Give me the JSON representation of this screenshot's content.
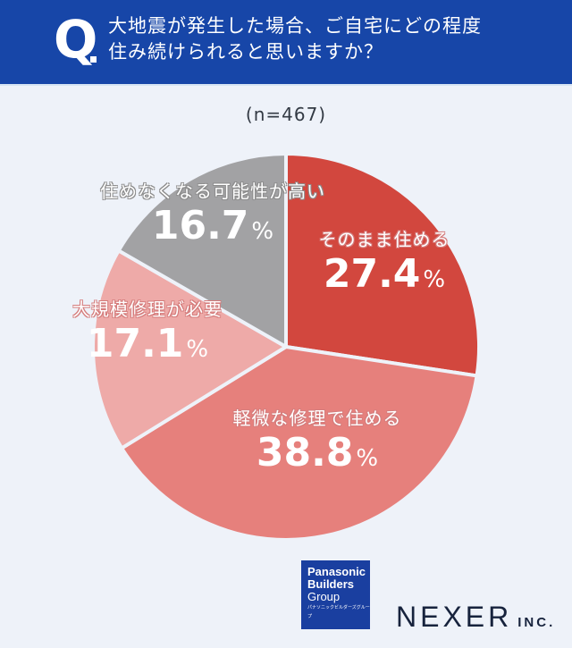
{
  "header": {
    "q_mark": "Q",
    "question_line1": "大地震が発生した場合、ご自宅にどの程度",
    "question_line2": "住み続けられると思いますか？"
  },
  "sample_size": "(n=467)",
  "colors": {
    "header_bg": "#1746a8",
    "page_bg": "#eef2f9",
    "slice_1": "#d2473e",
    "slice_2": "#e6807c",
    "slice_3": "#eeaaa8",
    "slice_4": "#a2a2a4",
    "separator": "#eef2f9"
  },
  "chart_data": {
    "type": "pie",
    "title": "大地震が発生した場合、ご自宅にどの程度住み続けられると思いますか？",
    "subtitle": "(n=467)",
    "categories": [
      "そのまま住める",
      "軽微な修理で住める",
      "大規模修理が必要",
      "住めなくなる可能性が高い"
    ],
    "values": [
      27.4,
      38.8,
      17.1,
      16.7
    ],
    "unit": "%",
    "start_angle": "12 o'clock",
    "direction": "clockwise",
    "legend": "none (labels inside slices)"
  },
  "labels": [
    {
      "category": "そのまま住める",
      "value": "27.4",
      "sign": "%"
    },
    {
      "category": "軽微な修理で住める",
      "value": "38.8",
      "sign": "%"
    },
    {
      "category": "大規模修理が必要",
      "value": "17.1",
      "sign": "%"
    },
    {
      "category": "住めなくなる可能性が高い",
      "value": "16.7",
      "sign": "%"
    }
  ],
  "footer": {
    "panasonic_line1": "Panasonic",
    "panasonic_line2": "Builders",
    "panasonic_line3": "Group",
    "panasonic_line4": "パナソニックビルダーズグループ",
    "nexer_main": "NEXER",
    "nexer_inc": "INC."
  }
}
